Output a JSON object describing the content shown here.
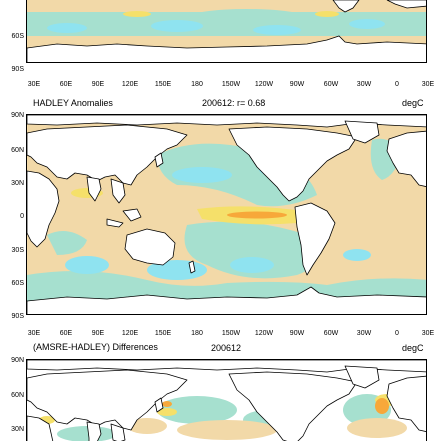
{
  "palette": {
    "land": "#ffffff",
    "tan": "#f2d9a8",
    "teal": "#a6e0cf",
    "cyan": "#8fe3f0",
    "orange": "#f7a83a",
    "yellow": "#f5e06a",
    "coast": "#000000"
  },
  "top_panel": {
    "y_labels": [
      "60S",
      "90S"
    ],
    "x_labels": [
      "30E",
      "60E",
      "90E",
      "120E",
      "150E",
      "180",
      "150W",
      "120W",
      "90W",
      "60W",
      "30W",
      "0",
      "30E"
    ]
  },
  "hadley_panel": {
    "title_left": "HADLEY Anomalies",
    "title_center": "200612: r= 0.68",
    "unit": "degC",
    "y_labels": [
      "90N",
      "60N",
      "30N",
      "0",
      "30S",
      "60S",
      "90S"
    ],
    "x_labels": [
      "30E",
      "60E",
      "90E",
      "120E",
      "150E",
      "180",
      "150W",
      "120W",
      "90W",
      "60W",
      "30W",
      "0",
      "30E"
    ]
  },
  "diff_panel": {
    "title_left": "(AMSRE-HADLEY) Differences",
    "title_center": "200612",
    "unit": "degC",
    "y_labels": [
      "90N",
      "60N",
      "30N"
    ]
  }
}
